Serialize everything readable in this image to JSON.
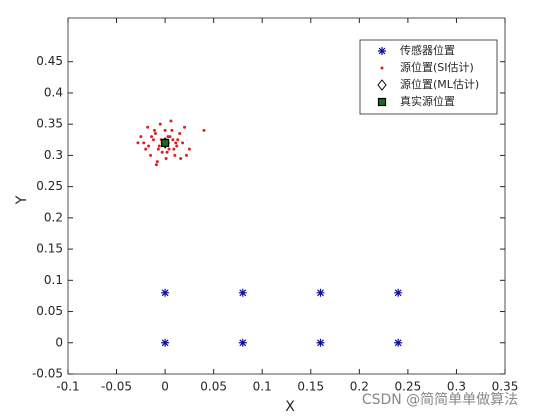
{
  "chart_data": {
    "type": "scatter",
    "xlabel": "X",
    "ylabel": "Y",
    "xlim": [
      -0.1,
      0.35
    ],
    "ylim": [
      -0.05,
      0.52
    ],
    "xticks": [
      -0.1,
      -0.05,
      0,
      0.05,
      0.1,
      0.15,
      0.2,
      0.25,
      0.3,
      0.35
    ],
    "yticks": [
      -0.05,
      0,
      0.05,
      0.1,
      0.15,
      0.2,
      0.25,
      0.3,
      0.35,
      0.4,
      0.45
    ],
    "legend": "top-right",
    "series": [
      {
        "name": "传感器位置",
        "marker": "asterisk",
        "color": "#1010a0",
        "x": [
          0,
          0.08,
          0.16,
          0.24,
          0,
          0.08,
          0.16,
          0.24
        ],
        "values": [
          0.08,
          0.08,
          0.08,
          0.08,
          0,
          0,
          0,
          0
        ]
      },
      {
        "name": "源位置(SI估计)",
        "marker": "dot",
        "color": "#e02020",
        "x": [
          -0.025,
          -0.02,
          -0.018,
          -0.015,
          -0.012,
          -0.01,
          -0.008,
          -0.006,
          -0.005,
          -0.003,
          -0.002,
          0,
          0.001,
          0.003,
          0.004,
          0.006,
          0.008,
          0.01,
          0.012,
          0.015,
          0.018,
          0.02,
          0.025,
          0.04,
          -0.022,
          -0.014,
          -0.009,
          -0.004,
          0.002,
          0.007,
          0.011,
          0.016,
          -0.017,
          -0.007,
          0.005,
          0.013,
          0.022,
          -0.028,
          -0.011,
          0.009
        ],
        "values": [
          0.33,
          0.31,
          0.345,
          0.3,
          0.325,
          0.335,
          0.29,
          0.315,
          0.35,
          0.305,
          0.32,
          0.34,
          0.295,
          0.33,
          0.31,
          0.355,
          0.325,
          0.3,
          0.315,
          0.335,
          0.32,
          0.345,
          0.31,
          0.34,
          0.32,
          0.33,
          0.285,
          0.325,
          0.305,
          0.34,
          0.32,
          0.295,
          0.315,
          0.31,
          0.33,
          0.325,
          0.3,
          0.32,
          0.34,
          0.31
        ]
      },
      {
        "name": "源位置(ML估计)",
        "marker": "diamond",
        "color": "#000000",
        "x": [
          0
        ],
        "values": [
          0.32
        ]
      },
      {
        "name": "真实源位置",
        "marker": "square",
        "color": "#1a6b1a",
        "x": [
          0
        ],
        "values": [
          0.32
        ]
      }
    ],
    "watermark": "CSDN @简简单单做算法"
  }
}
